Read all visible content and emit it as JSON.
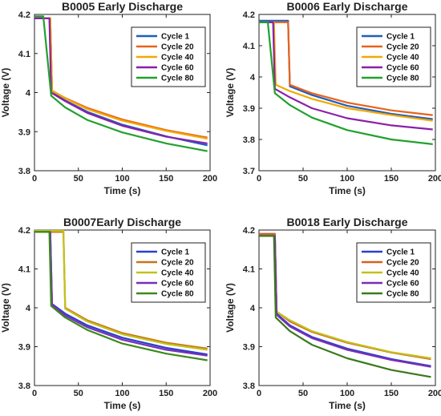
{
  "chart_data": [
    {
      "type": "line",
      "title": "B0005 Early Discharge",
      "xlabel": "Time (s)",
      "ylabel": "Voltage (V)",
      "xlim": [
        0,
        200
      ],
      "ylim": [
        3.8,
        4.2
      ],
      "xticks": [
        "0",
        "50",
        "100",
        "150",
        "200"
      ],
      "yticks": [
        "3.8",
        "3.9",
        "4",
        "4.1",
        "4.2"
      ],
      "grid": false,
      "legend": "top-right",
      "series": [
        {
          "name": "Cycle 1",
          "color": "#1f5fbf",
          "x": [
            0,
            18,
            20,
            35,
            60,
            100,
            150,
            197
          ],
          "y": [
            4.19,
            4.19,
            4.005,
            3.98,
            3.951,
            3.918,
            3.888,
            3.865
          ]
        },
        {
          "name": "Cycle 20",
          "color": "#e8641a",
          "x": [
            0,
            18,
            20,
            35,
            60,
            100,
            150,
            197
          ],
          "y": [
            4.19,
            4.19,
            4.005,
            3.986,
            3.961,
            3.931,
            3.904,
            3.885
          ]
        },
        {
          "name": "Cycle 40",
          "color": "#f2a900",
          "x": [
            0,
            18,
            20,
            35,
            60,
            100,
            150,
            197
          ],
          "y": [
            4.19,
            4.19,
            4.005,
            3.985,
            3.958,
            3.928,
            3.902,
            3.882
          ]
        },
        {
          "name": "Cycle 60",
          "color": "#8b1fa9",
          "x": [
            0,
            17,
            19,
            35,
            60,
            100,
            150,
            197
          ],
          "y": [
            4.19,
            4.19,
            4.0,
            3.978,
            3.948,
            3.915,
            3.887,
            3.87
          ]
        },
        {
          "name": "Cycle 80",
          "color": "#22a02e",
          "x": [
            0,
            10,
            19,
            35,
            60,
            100,
            150,
            197
          ],
          "y": [
            4.195,
            4.195,
            3.992,
            3.962,
            3.93,
            3.898,
            3.87,
            3.85
          ]
        }
      ]
    },
    {
      "type": "line",
      "title": "B0006 Early Discharge",
      "xlabel": "Time (s)",
      "ylabel": "Voltage (V)",
      "xlim": [
        0,
        200
      ],
      "ylim": [
        3.7,
        4.2
      ],
      "xticks": [
        "0",
        "50",
        "100",
        "150",
        "200"
      ],
      "yticks": [
        "3.7",
        "3.8",
        "3.9",
        "4",
        "4.1",
        "4.2"
      ],
      "grid": false,
      "legend": "top-right",
      "series": [
        {
          "name": "Cycle 1",
          "color": "#1f5fbf",
          "x": [
            0,
            33,
            35,
            60,
            100,
            150,
            197
          ],
          "y": [
            4.18,
            4.18,
            3.97,
            3.942,
            3.908,
            3.882,
            3.865
          ]
        },
        {
          "name": "Cycle 20",
          "color": "#e8641a",
          "x": [
            0,
            33,
            35,
            60,
            100,
            150,
            197
          ],
          "y": [
            4.175,
            4.175,
            3.975,
            3.948,
            3.918,
            3.893,
            3.878
          ]
        },
        {
          "name": "Cycle 40",
          "color": "#f2a900",
          "x": [
            0,
            17,
            19,
            35,
            60,
            100,
            150,
            197
          ],
          "y": [
            4.175,
            4.175,
            3.975,
            3.955,
            3.93,
            3.9,
            3.878,
            3.86
          ]
        },
        {
          "name": "Cycle 60",
          "color": "#8b1fa9",
          "x": [
            0,
            16,
            18,
            35,
            60,
            100,
            150,
            197
          ],
          "y": [
            4.175,
            4.175,
            3.962,
            3.935,
            3.9,
            3.868,
            3.845,
            3.832
          ]
        },
        {
          "name": "Cycle 80",
          "color": "#22a02e",
          "x": [
            0,
            10,
            18,
            35,
            60,
            100,
            150,
            197
          ],
          "y": [
            4.175,
            4.175,
            3.948,
            3.91,
            3.87,
            3.83,
            3.8,
            3.785
          ]
        }
      ]
    },
    {
      "type": "line",
      "title": "B0007Early Discharge",
      "xlabel": "Time (s)",
      "ylabel": "Voltage (V)",
      "xlim": [
        0,
        200
      ],
      "ylim": [
        3.8,
        4.2
      ],
      "xticks": [
        "0",
        "50",
        "100",
        "150",
        "200"
      ],
      "yticks": [
        "3.8",
        "3.9",
        "4",
        "4.1",
        "4.2"
      ],
      "grid": false,
      "legend": "top-right",
      "series": [
        {
          "name": "Cycle 1",
          "color": "#2b3fcf",
          "x": [
            0,
            18,
            20,
            35,
            60,
            100,
            150,
            197
          ],
          "y": [
            4.195,
            4.195,
            4.01,
            3.985,
            3.955,
            3.923,
            3.897,
            3.88
          ]
        },
        {
          "name": "Cycle 20",
          "color": "#c8741a",
          "x": [
            0,
            33,
            35,
            60,
            100,
            150,
            197
          ],
          "y": [
            4.195,
            4.195,
            4.0,
            3.968,
            3.935,
            3.91,
            3.895
          ]
        },
        {
          "name": "Cycle 40",
          "color": "#c2c21a",
          "x": [
            0,
            33,
            35,
            60,
            100,
            150,
            197
          ],
          "y": [
            4.198,
            4.198,
            3.998,
            3.965,
            3.932,
            3.907,
            3.892
          ]
        },
        {
          "name": "Cycle 60",
          "color": "#7a2fb5",
          "x": [
            0,
            18,
            20,
            35,
            60,
            100,
            150,
            197
          ],
          "y": [
            4.195,
            4.195,
            4.008,
            3.98,
            3.95,
            3.918,
            3.892,
            3.877
          ]
        },
        {
          "name": "Cycle 80",
          "color": "#3a8a1a",
          "x": [
            0,
            17,
            19,
            35,
            60,
            100,
            150,
            197
          ],
          "y": [
            4.195,
            4.195,
            4.005,
            3.975,
            3.943,
            3.908,
            3.882,
            3.865
          ]
        }
      ]
    },
    {
      "type": "line",
      "title": "B0018 Early Discharge",
      "xlabel": "Time (s)",
      "ylabel": "Voltage (V)",
      "xlim": [
        0,
        200
      ],
      "ylim": [
        3.8,
        4.2
      ],
      "xticks": [
        "0",
        "50",
        "100",
        "150",
        "200"
      ],
      "yticks": [
        "3.8",
        "3.9",
        "4",
        "4.1",
        "4.2"
      ],
      "grid": false,
      "legend": "top-right",
      "series": [
        {
          "name": "Cycle 1",
          "color": "#2b3fcf",
          "x": [
            0,
            18,
            20,
            35,
            60,
            100,
            150,
            195
          ],
          "y": [
            4.19,
            4.19,
            3.985,
            3.955,
            3.925,
            3.895,
            3.868,
            3.85
          ]
        },
        {
          "name": "Cycle 20",
          "color": "#d8601a",
          "x": [
            0,
            18,
            20,
            35,
            60,
            100,
            150,
            195
          ],
          "y": [
            4.19,
            4.19,
            3.99,
            3.965,
            3.938,
            3.91,
            3.885,
            3.868
          ]
        },
        {
          "name": "Cycle 40",
          "color": "#c2c21a",
          "x": [
            0,
            18,
            20,
            35,
            60,
            100,
            150,
            195
          ],
          "y": [
            4.185,
            4.185,
            3.99,
            3.968,
            3.94,
            3.912,
            3.886,
            3.87
          ]
        },
        {
          "name": "Cycle 60",
          "color": "#7a2fb5",
          "x": [
            0,
            18,
            20,
            35,
            60,
            100,
            150,
            195
          ],
          "y": [
            4.185,
            4.185,
            3.982,
            3.952,
            3.922,
            3.892,
            3.866,
            3.848
          ]
        },
        {
          "name": "Cycle 80",
          "color": "#3a7a1a",
          "x": [
            0,
            17,
            19,
            35,
            60,
            100,
            150,
            195
          ],
          "y": [
            4.185,
            4.185,
            3.975,
            3.94,
            3.905,
            3.87,
            3.84,
            3.822
          ]
        }
      ]
    }
  ]
}
